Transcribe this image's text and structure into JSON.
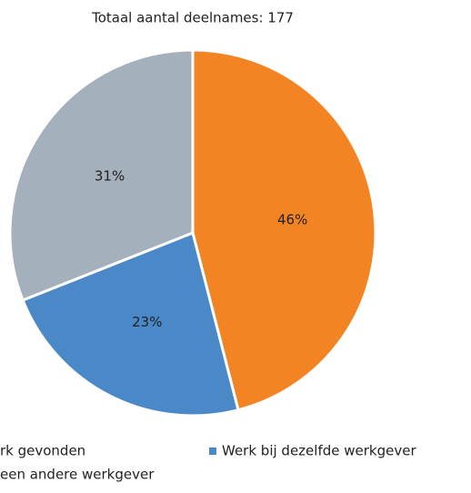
{
  "chart_data": {
    "type": "pie",
    "title": "Totaal aantal deelnames: 177",
    "categories": [
      "rk gevonden",
      "Werk bij dezelfde werkgever",
      "een andere werkgever"
    ],
    "values": [
      46,
      23,
      31
    ],
    "value_labels": [
      "46%",
      "23%",
      "31%"
    ],
    "colors": [
      "#f28424",
      "#4a88c8",
      "#a5b0bd"
    ]
  }
}
